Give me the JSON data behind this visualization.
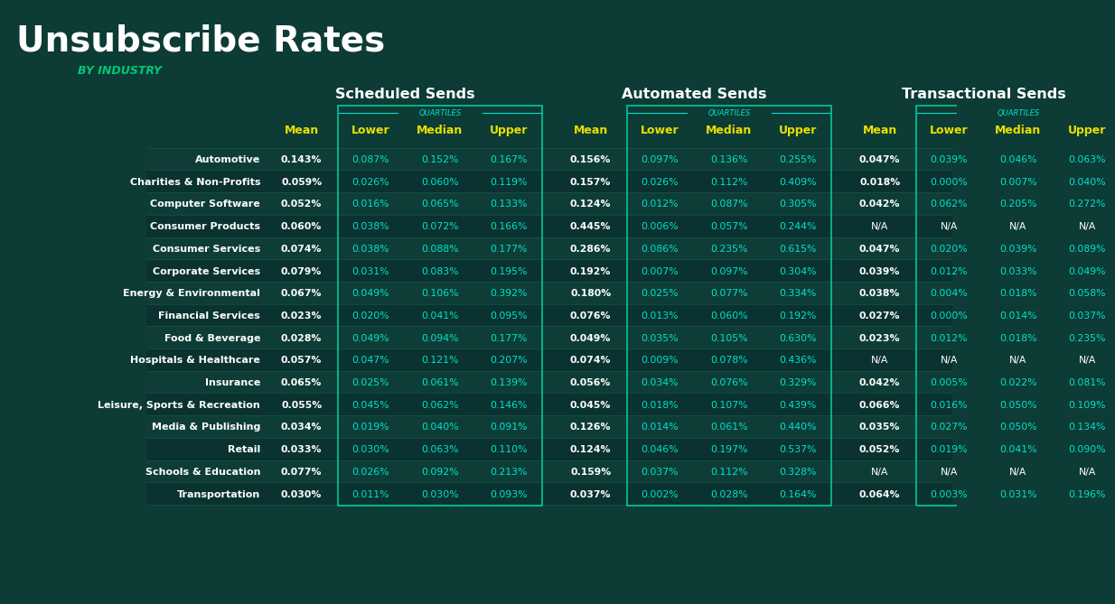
{
  "title_main": "Unsubscribe Rates",
  "title_sub": "BY INDUSTRY",
  "bg_color": "#0d3b35",
  "industries": [
    "Automotive",
    "Charities & Non-Profits",
    "Computer Software",
    "Consumer Products",
    "Consumer Services",
    "Corporate Services",
    "Energy & Environmental",
    "Financial Services",
    "Food & Beverage",
    "Hospitals & Healthcare",
    "Insurance",
    "Leisure, Sports & Recreation",
    "Media & Publishing",
    "Retail",
    "Schools & Education",
    "Transportation"
  ],
  "scheduled": {
    "mean": [
      "0.143%",
      "0.059%",
      "0.052%",
      "0.060%",
      "0.074%",
      "0.079%",
      "0.067%",
      "0.023%",
      "0.028%",
      "0.057%",
      "0.065%",
      "0.055%",
      "0.034%",
      "0.033%",
      "0.077%",
      "0.030%"
    ],
    "lower": [
      "0.087%",
      "0.026%",
      "0.016%",
      "0.038%",
      "0.038%",
      "0.031%",
      "0.049%",
      "0.020%",
      "0.049%",
      "0.047%",
      "0.025%",
      "0.045%",
      "0.019%",
      "0.030%",
      "0.026%",
      "0.011%"
    ],
    "median": [
      "0.152%",
      "0.060%",
      "0.065%",
      "0.072%",
      "0.088%",
      "0.083%",
      "0.106%",
      "0.041%",
      "0.094%",
      "0.121%",
      "0.061%",
      "0.062%",
      "0.040%",
      "0.063%",
      "0.092%",
      "0.030%"
    ],
    "upper": [
      "0.167%",
      "0.119%",
      "0.133%",
      "0.166%",
      "0.177%",
      "0.195%",
      "0.392%",
      "0.095%",
      "0.177%",
      "0.207%",
      "0.139%",
      "0.146%",
      "0.091%",
      "0.110%",
      "0.213%",
      "0.093%"
    ]
  },
  "automated": {
    "mean": [
      "0.156%",
      "0.157%",
      "0.124%",
      "0.445%",
      "0.286%",
      "0.192%",
      "0.180%",
      "0.076%",
      "0.049%",
      "0.074%",
      "0.056%",
      "0.045%",
      "0.126%",
      "0.124%",
      "0.159%",
      "0.037%"
    ],
    "lower": [
      "0.097%",
      "0.026%",
      "0.012%",
      "0.006%",
      "0.086%",
      "0.007%",
      "0.025%",
      "0.013%",
      "0.035%",
      "0.009%",
      "0.034%",
      "0.018%",
      "0.014%",
      "0.046%",
      "0.037%",
      "0.002%"
    ],
    "median": [
      "0.136%",
      "0.112%",
      "0.087%",
      "0.057%",
      "0.235%",
      "0.097%",
      "0.077%",
      "0.060%",
      "0.105%",
      "0.078%",
      "0.076%",
      "0.107%",
      "0.061%",
      "0.197%",
      "0.112%",
      "0.028%"
    ],
    "upper": [
      "0.255%",
      "0.409%",
      "0.305%",
      "0.244%",
      "0.615%",
      "0.304%",
      "0.334%",
      "0.192%",
      "0.630%",
      "0.436%",
      "0.329%",
      "0.439%",
      "0.440%",
      "0.537%",
      "0.328%",
      "0.164%"
    ]
  },
  "transactional": {
    "mean": [
      "0.047%",
      "0.018%",
      "0.042%",
      "N/A",
      "0.047%",
      "0.039%",
      "0.038%",
      "0.027%",
      "0.023%",
      "N/A",
      "0.042%",
      "0.066%",
      "0.035%",
      "0.052%",
      "N/A",
      "0.064%"
    ],
    "lower": [
      "0.039%",
      "0.000%",
      "0.062%",
      "N/A",
      "0.020%",
      "0.012%",
      "0.004%",
      "0.000%",
      "0.012%",
      "N/A",
      "0.005%",
      "0.016%",
      "0.027%",
      "0.019%",
      "N/A",
      "0.003%"
    ],
    "median": [
      "0.046%",
      "0.007%",
      "0.205%",
      "N/A",
      "0.039%",
      "0.033%",
      "0.018%",
      "0.014%",
      "0.018%",
      "N/A",
      "0.022%",
      "0.050%",
      "0.050%",
      "0.041%",
      "N/A",
      "0.031%"
    ],
    "upper": [
      "0.063%",
      "0.040%",
      "0.272%",
      "N/A",
      "0.089%",
      "0.049%",
      "0.058%",
      "0.037%",
      "0.235%",
      "N/A",
      "0.081%",
      "0.109%",
      "0.134%",
      "0.090%",
      "N/A",
      "0.196%"
    ]
  },
  "section_headers": [
    "Scheduled Sends",
    "Automated Sends",
    "Transactional Sends"
  ],
  "col_headers": [
    "Mean",
    "Lower",
    "Median",
    "Upper"
  ],
  "quartiles_label": "QUARTILES",
  "color_bg_dark": "#0d3b35",
  "color_row_even": "#0e3d37",
  "color_row_odd": "#0a3230",
  "color_mean_text": "#ffffff",
  "color_quartile_text": "#00e5cc",
  "color_mean_header": "#e8e000",
  "color_quartile_header": "#e8e000",
  "color_section_header": "#ffffff",
  "color_industry_text": "#ffffff",
  "color_border": "#00c8a0",
  "color_quartile_label": "#00e5cc",
  "color_title_main": "#ffffff",
  "color_title_sub": "#00c878",
  "color_na": "#ffffff",
  "color_hline": "#1a5a50"
}
